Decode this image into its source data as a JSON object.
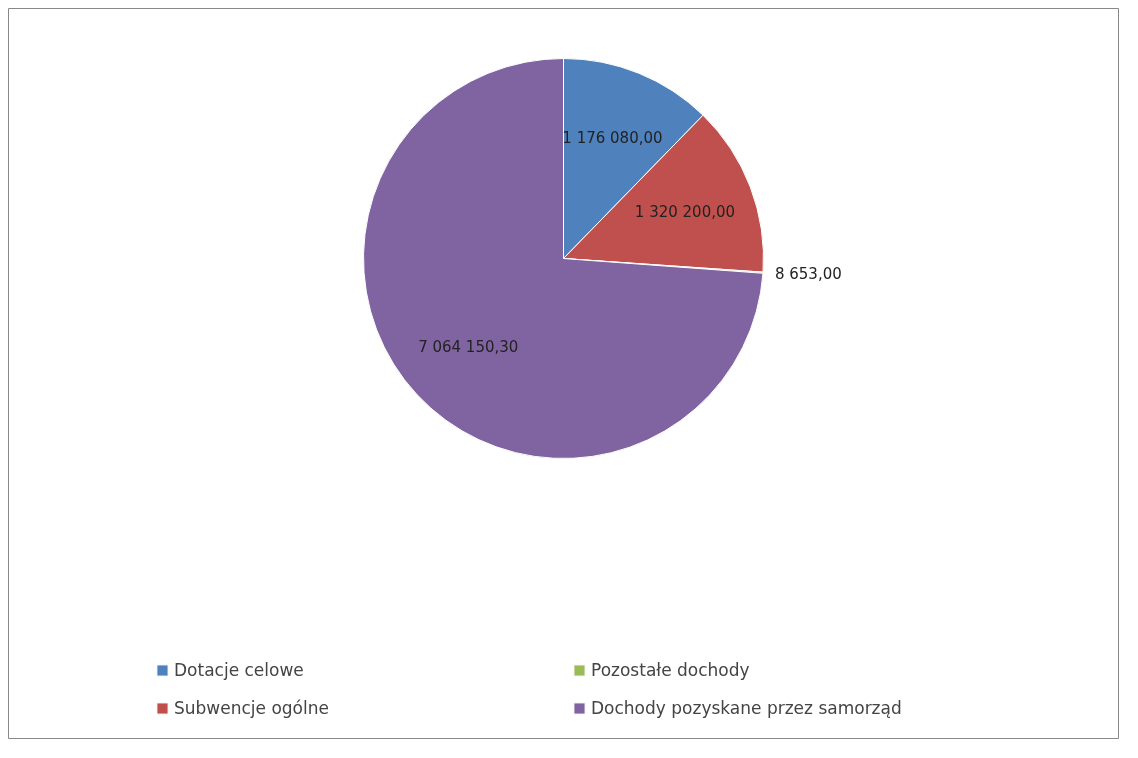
{
  "chart_data": {
    "type": "pie",
    "categories": [
      "Dotacje celowe",
      "Subwencje ogólne",
      "Pozostałe dochody",
      "Dochody pozyskane przez samorząd"
    ],
    "values": [
      1176080.0,
      1320200.0,
      8653.0,
      7064150.3
    ],
    "value_labels": [
      "1 176 080,00",
      "1 320 200,00",
      "8 653,00",
      "7 064 150,30"
    ],
    "colors": [
      "#4f81bd",
      "#c0504d",
      "#9bbb59",
      "#8064a2"
    ],
    "legend": "bottom"
  }
}
